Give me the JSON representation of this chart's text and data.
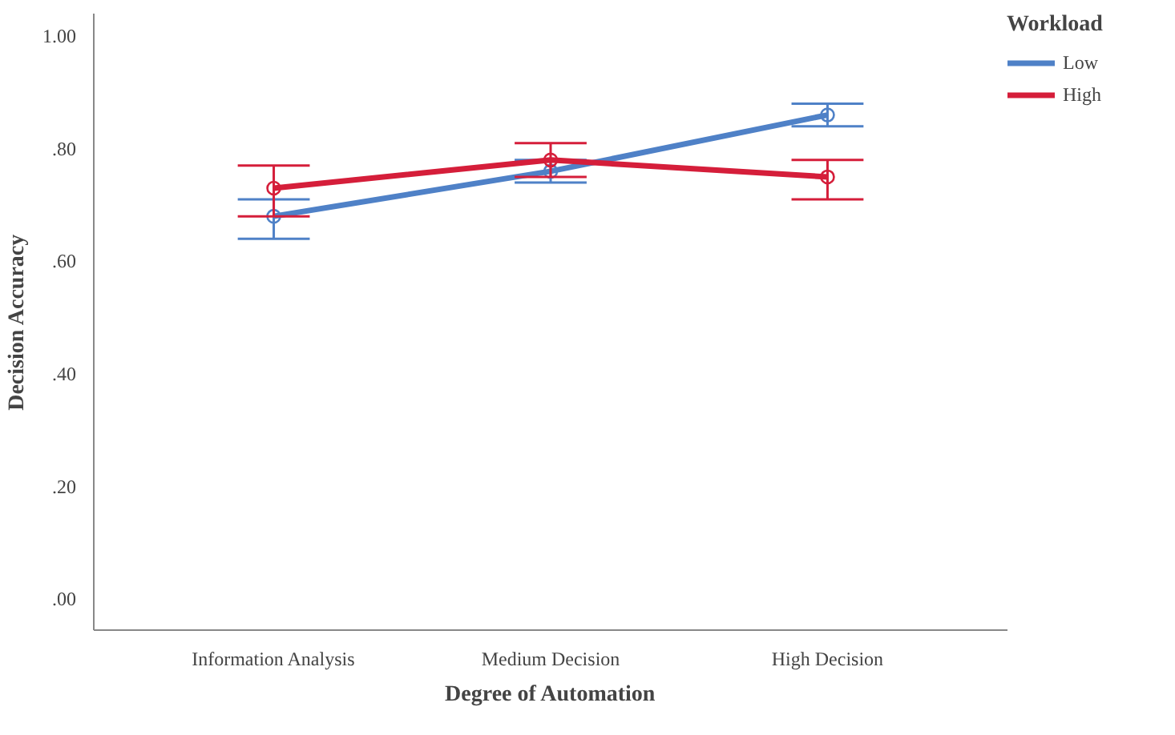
{
  "chart_data": {
    "type": "line",
    "xlabel": "Degree of Automation",
    "ylabel": "Decision Accuracy",
    "legend_title": "Workload",
    "categories": [
      "Information Analysis",
      "Medium Decision",
      "High Decision"
    ],
    "series": [
      {
        "name": "Low",
        "color": "#4f81c7",
        "values": [
          0.68,
          0.76,
          0.86
        ],
        "errors": [
          [
            0.64,
            0.71
          ],
          [
            0.74,
            0.78
          ],
          [
            0.84,
            0.88
          ]
        ]
      },
      {
        "name": "High",
        "color": "#d51e3a",
        "values": [
          0.73,
          0.78,
          0.75
        ],
        "errors": [
          [
            0.68,
            0.77
          ],
          [
            0.75,
            0.81
          ],
          [
            0.71,
            0.78
          ]
        ]
      }
    ],
    "ylim": [
      -0.055,
      1.04
    ],
    "yticks": [
      {
        "value": 0,
        "label": ".00"
      },
      {
        "value": 0.2,
        "label": ".20"
      },
      {
        "value": 0.4,
        "label": ".40"
      },
      {
        "value": 0.6,
        "label": ".60"
      },
      {
        "value": 0.8,
        "label": ".80"
      },
      {
        "value": 1,
        "label": "1.00"
      }
    ],
    "grid": false,
    "legend": "top right",
    "marker": "circle",
    "line_style": "solid"
  }
}
